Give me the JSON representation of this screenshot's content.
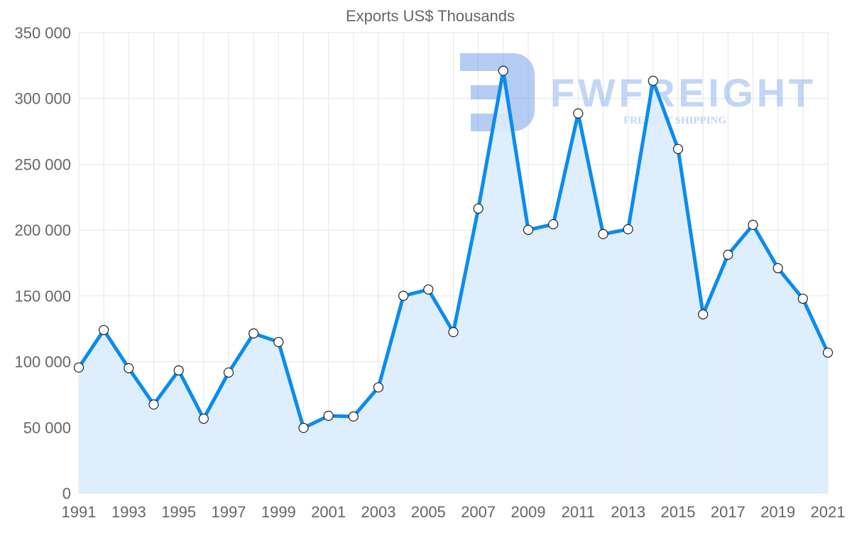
{
  "chart_data": {
    "type": "line",
    "title": "Exports US$ Thousands",
    "xlabel": "",
    "ylabel": "",
    "x": [
      1991,
      1992,
      1993,
      1994,
      1995,
      1996,
      1997,
      1998,
      1999,
      2000,
      2001,
      2002,
      2003,
      2004,
      2005,
      2006,
      2007,
      2008,
      2009,
      2010,
      2011,
      2012,
      2013,
      2014,
      2015,
      2016,
      2017,
      2018,
      2019,
      2020,
      2021
    ],
    "series": [
      {
        "name": "Exports US$ Thousands",
        "values": [
          95500,
          124000,
          95000,
          67400,
          93300,
          56600,
          91700,
          121400,
          114900,
          49600,
          58800,
          58300,
          80400,
          150000,
          154800,
          122400,
          216300,
          321000,
          200100,
          204400,
          288600,
          196900,
          200600,
          313400,
          261600,
          135900,
          181200,
          203900,
          171000,
          147800,
          106800
        ]
      }
    ],
    "ylim": [
      0,
      350000
    ],
    "xlim": [
      1991,
      2021
    ],
    "y_ticks": [
      "0",
      "50 000",
      "100 000",
      "150 000",
      "200 000",
      "250 000",
      "300 000",
      "350 000"
    ],
    "x_ticks": [
      "1991",
      "1993",
      "1995",
      "1997",
      "1999",
      "2001",
      "2003",
      "2005",
      "2007",
      "2009",
      "2011",
      "2013",
      "2015",
      "2017",
      "2019",
      "2021"
    ],
    "grid": true,
    "fill": true,
    "colors": {
      "line": "#0a8cf0",
      "fill": "#dbecfc",
      "grid": "#e6e6e6"
    }
  },
  "watermark": {
    "brand": "FWFREIGHT",
    "tagline": "FREIGHT SHIPPING"
  }
}
